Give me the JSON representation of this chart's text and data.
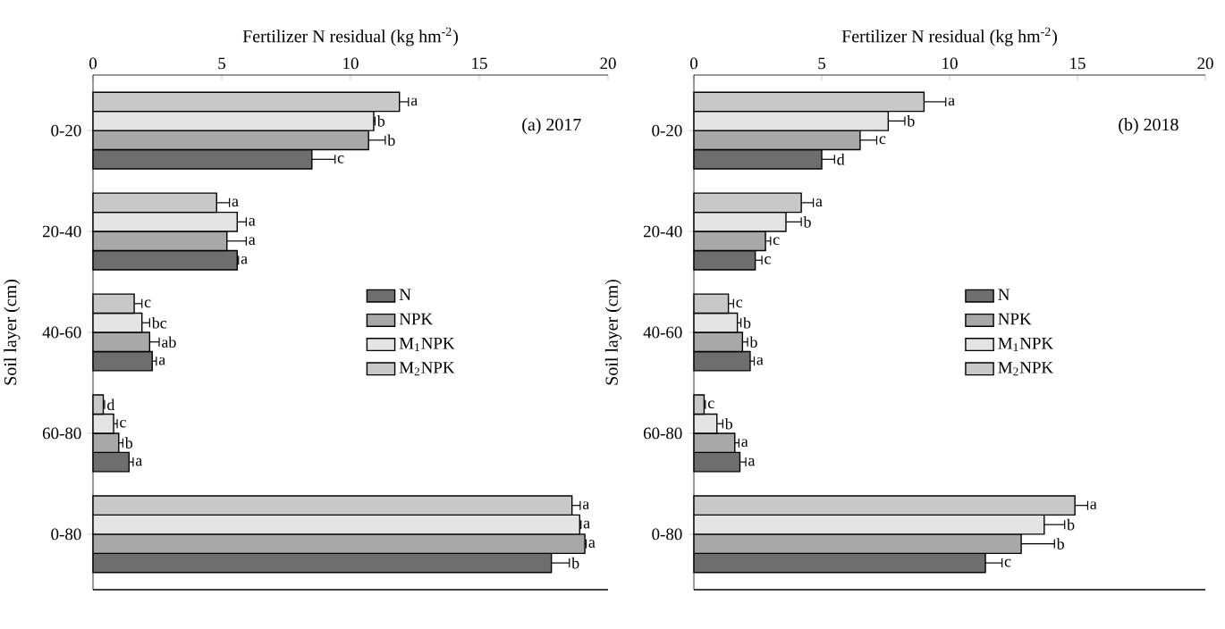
{
  "chart_data": [
    {
      "type": "bar",
      "orientation": "horizontal",
      "title": "(a) 2017",
      "xlabel": "Fertilizer N residual (kg hm$^{-2}$)",
      "ylabel": "Soil layer (cm)",
      "categories": [
        "0-20",
        "20-40",
        "40-60",
        "60-80",
        "0-80"
      ],
      "xlim": [
        0,
        20
      ],
      "xticks": [
        0,
        5,
        10,
        15,
        20
      ],
      "legend": "center",
      "series": [
        {
          "name": "N",
          "color": "#6e6e6e",
          "values": [
            8.5,
            5.6,
            2.3,
            1.4,
            17.8
          ],
          "errors": [
            0.9,
            0.05,
            0.16,
            0.16,
            0.7
          ],
          "value_labels": [
            "c",
            "a",
            "a",
            "a",
            "b"
          ]
        },
        {
          "name": "NPK",
          "color": "#a8a8a8",
          "values": [
            10.7,
            5.2,
            2.2,
            1.0,
            19.1
          ],
          "errors": [
            0.65,
            0.75,
            0.37,
            0.16,
            0.05
          ],
          "value_labels": [
            "b",
            "a",
            "ab",
            "b",
            "a"
          ]
        },
        {
          "name": "M$_{1}$NPK",
          "color": "#e4e4e4",
          "values": [
            10.9,
            5.6,
            1.9,
            0.8,
            18.9
          ],
          "errors": [
            0.05,
            0.35,
            0.3,
            0.14,
            0.05
          ],
          "value_labels": [
            "b",
            "a",
            "bc",
            "c",
            "a"
          ]
        },
        {
          "name": "M$_{2}$NPK",
          "color": "#c8c8c8",
          "values": [
            11.9,
            4.8,
            1.6,
            0.4,
            18.6
          ],
          "errors": [
            0.35,
            0.5,
            0.3,
            0.05,
            0.32
          ],
          "value_labels": [
            "a",
            "a",
            "c",
            "d",
            "a"
          ]
        }
      ]
    },
    {
      "type": "bar",
      "orientation": "horizontal",
      "title": "(b) 2018",
      "xlabel": "Fertilizer N residual (kg hm$^{-2}$)",
      "ylabel": "Soil layer (cm)",
      "categories": [
        "0-20",
        "20-40",
        "40-60",
        "60-80",
        "0-80"
      ],
      "xlim": [
        0,
        20
      ],
      "xticks": [
        0,
        5,
        10,
        15,
        20
      ],
      "legend": "center",
      "series": [
        {
          "name": "N",
          "color": "#6e6e6e",
          "values": [
            5.0,
            2.4,
            2.2,
            1.8,
            11.4
          ],
          "errors": [
            0.5,
            0.26,
            0.16,
            0.23,
            0.65
          ],
          "value_labels": [
            "d",
            "c",
            "a",
            "a",
            "c"
          ]
        },
        {
          "name": "NPK",
          "color": "#a8a8a8",
          "values": [
            6.5,
            2.8,
            1.9,
            1.6,
            12.8
          ],
          "errors": [
            0.65,
            0.2,
            0.2,
            0.16,
            1.3
          ],
          "value_labels": [
            "c",
            "c",
            "b",
            "a",
            "b"
          ]
        },
        {
          "name": "M$_{1}$NPK",
          "color": "#e4e4e4",
          "values": [
            7.6,
            3.6,
            1.7,
            0.9,
            13.7
          ],
          "errors": [
            0.65,
            0.6,
            0.14,
            0.23,
            0.8
          ],
          "value_labels": [
            "b",
            "b",
            "b",
            "b",
            "b"
          ]
        },
        {
          "name": "M$_{2}$NPK",
          "color": "#c8c8c8",
          "values": [
            9.0,
            4.2,
            1.35,
            0.4,
            14.9
          ],
          "errors": [
            0.85,
            0.47,
            0.2,
            0.05,
            0.5
          ],
          "value_labels": [
            "a",
            "a",
            "c",
            "c",
            "a"
          ]
        }
      ]
    }
  ]
}
